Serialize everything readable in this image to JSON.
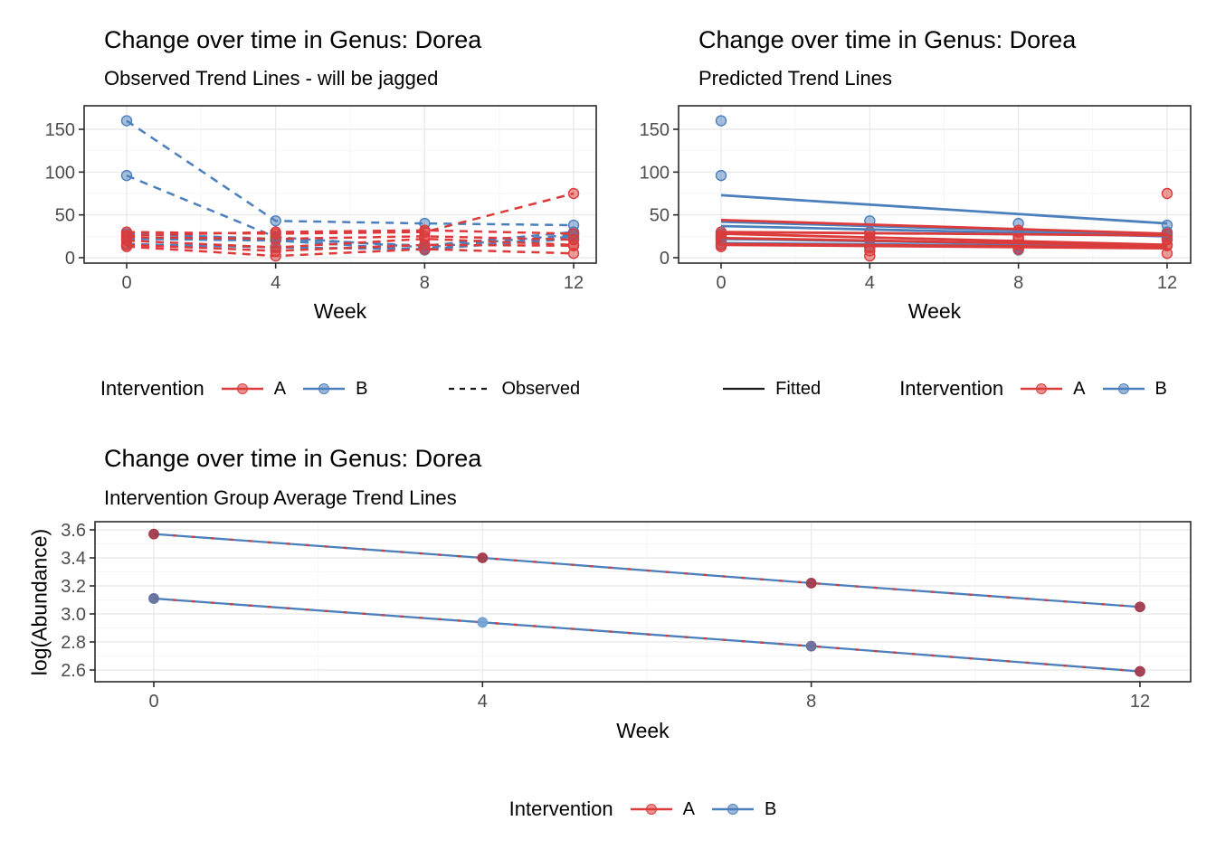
{
  "colors": {
    "intervention_a": "#DB3B3A",
    "intervention_b": "#4C80BC",
    "linetype_key": "#1A1A1A",
    "grid_major": "#EBEBEB",
    "grid_minor": "#F6F6F6",
    "panel_border": "#2B2B2B",
    "tick_text": "#4D4D4D",
    "avg_line_base": "#4C80BC",
    "avg_line_overlay": "#C94040"
  },
  "chart_data": [
    {
      "key": "observed",
      "type": "line",
      "title": "Change over time in Genus: Dorea",
      "subtitle": "Observed Trend Lines - will be jagged",
      "xlabel": "Week",
      "ylabel": "",
      "x": [
        0,
        4,
        8,
        12
      ],
      "xtick_labels": [
        "0",
        "4",
        "8",
        "12"
      ],
      "yticks": [
        0,
        50,
        100,
        150
      ],
      "ytick_labels": [
        "0",
        "50",
        "100",
        "150"
      ],
      "xlim": [
        -1.1,
        12.6
      ],
      "ylim": [
        -6,
        177
      ],
      "line_style": "dashed",
      "series": [
        {
          "group": "B",
          "values": [
            160,
            43,
            40,
            38
          ]
        },
        {
          "group": "B",
          "values": [
            96,
            24,
            12,
            27
          ]
        },
        {
          "group": "B",
          "values": [
            28,
            22,
            14,
            30
          ]
        },
        {
          "group": "B",
          "values": [
            22,
            20,
            9,
            25
          ]
        },
        {
          "group": "B",
          "values": [
            16,
            12,
            10,
            22
          ]
        },
        {
          "group": "A",
          "values": [
            30,
            28,
            30,
            75
          ]
        },
        {
          "group": "A",
          "values": [
            26,
            30,
            32,
            28
          ]
        },
        {
          "group": "A",
          "values": [
            24,
            22,
            25,
            21
          ]
        },
        {
          "group": "A",
          "values": [
            20,
            12,
            22,
            15
          ]
        },
        {
          "group": "A",
          "values": [
            15,
            8,
            15,
            14
          ]
        },
        {
          "group": "A",
          "values": [
            13,
            2,
            10,
            5
          ]
        }
      ],
      "legend": {
        "title": "Intervention",
        "item_a": "A",
        "item_b": "B",
        "linetype_label": "Observed"
      }
    },
    {
      "key": "predicted",
      "type": "line",
      "title": "Change over time in Genus: Dorea",
      "subtitle": "Predicted Trend Lines",
      "xlabel": "Week",
      "ylabel": "",
      "x": [
        0,
        4,
        8,
        12
      ],
      "xtick_labels": [
        "0",
        "4",
        "8",
        "12"
      ],
      "yticks": [
        0,
        50,
        100,
        150
      ],
      "ytick_labels": [
        "0",
        "50",
        "100",
        "150"
      ],
      "xlim": [
        -1.1,
        12.6
      ],
      "ylim": [
        -6,
        177
      ],
      "line_style": "solid",
      "points_series": [
        {
          "group": "B",
          "values": [
            160,
            43,
            40,
            38
          ]
        },
        {
          "group": "B",
          "values": [
            96,
            24,
            12,
            27
          ]
        },
        {
          "group": "B",
          "values": [
            28,
            22,
            14,
            30
          ]
        },
        {
          "group": "B",
          "values": [
            22,
            20,
            9,
            25
          ]
        },
        {
          "group": "B",
          "values": [
            16,
            12,
            10,
            22
          ]
        },
        {
          "group": "A",
          "values": [
            30,
            28,
            30,
            75
          ]
        },
        {
          "group": "A",
          "values": [
            26,
            30,
            32,
            28
          ]
        },
        {
          "group": "A",
          "values": [
            24,
            22,
            25,
            21
          ]
        },
        {
          "group": "A",
          "values": [
            20,
            12,
            22,
            15
          ]
        },
        {
          "group": "A",
          "values": [
            15,
            8,
            15,
            14
          ]
        },
        {
          "group": "A",
          "values": [
            13,
            2,
            10,
            5
          ]
        }
      ],
      "fitted": [
        {
          "group": "B",
          "start": 73,
          "end": 40
        },
        {
          "group": "B",
          "start": 42,
          "end": 27
        },
        {
          "group": "B",
          "start": 37,
          "end": 25
        },
        {
          "group": "B",
          "start": 22,
          "end": 14
        },
        {
          "group": "B",
          "start": 17,
          "end": 13
        },
        {
          "group": "A",
          "start": 44,
          "end": 28
        },
        {
          "group": "A",
          "start": 30,
          "end": 26
        },
        {
          "group": "A",
          "start": 28,
          "end": 15
        },
        {
          "group": "A",
          "start": 23,
          "end": 14
        },
        {
          "group": "A",
          "start": 16,
          "end": 12
        },
        {
          "group": "A",
          "start": 15,
          "end": 11
        }
      ],
      "legend": {
        "title": "Intervention",
        "item_a": "A",
        "item_b": "B",
        "linetype_label": "Fitted"
      }
    },
    {
      "key": "average",
      "type": "line",
      "title": "Change over time in Genus: Dorea",
      "subtitle": "Intervention Group Average Trend Lines",
      "xlabel": "Week",
      "ylabel": "log(Abundance)",
      "x": [
        0,
        4,
        8,
        12
      ],
      "xtick_labels": [
        "0",
        "4",
        "8",
        "12"
      ],
      "yticks": [
        2.6,
        2.8,
        3.0,
        3.2,
        3.4,
        3.6
      ],
      "ytick_labels": [
        "2.6",
        "2.8",
        "3.0",
        "3.2",
        "3.4",
        "3.6"
      ],
      "xlim": [
        -0.9,
        12.7
      ],
      "ylim": [
        2.52,
        3.71
      ],
      "line_style": "solid",
      "series": [
        {
          "name": "A",
          "values": [
            3.57,
            3.4,
            3.22,
            3.05
          ]
        },
        {
          "name": "B",
          "values": [
            3.11,
            2.94,
            2.77,
            2.59
          ]
        }
      ],
      "point_colors": {
        "A": [
          "#A23B4E",
          "#A23B4E",
          "#A23B4E",
          "#A23B4E"
        ],
        "B": [
          "#64719F",
          "#74A3D2",
          "#6F6D9B",
          "#A23B4E"
        ]
      },
      "legend": {
        "title": "Intervention",
        "item_a": "A",
        "item_b": "B"
      }
    }
  ]
}
